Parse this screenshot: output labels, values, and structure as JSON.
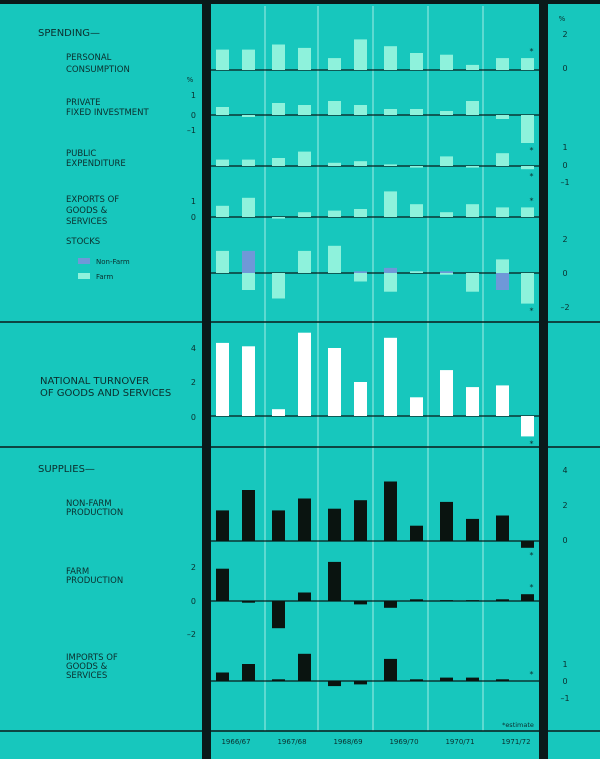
{
  "colors": {
    "background": "#17c7bd",
    "frame": "#0a1a1a",
    "spending_bar": "#8ef2dc",
    "nonfarm_bar": "#6f98d8",
    "turnover_bar": "#ffffff",
    "supplies_bar": "#0a1410"
  },
  "sections": {
    "spending": "SPENDING—",
    "supplies": "SUPPLIES—"
  },
  "chart_data": {
    "type": "bar",
    "x_labels": [
      "1966/67",
      "1967/68",
      "1968/69",
      "1969/70",
      "1970/71",
      "1971/72"
    ],
    "footnote": "*estimate",
    "estimate_marker": "*",
    "panels": [
      {
        "label": [
          "PERSONAL",
          "CONSUMPTION"
        ],
        "percent_symbol": "%",
        "ticks_right": [
          "2",
          "0"
        ],
        "series": [
          {
            "values": [
              1.2,
              1.2,
              1.5,
              1.3,
              0.7,
              1.8,
              1.4,
              1.0,
              0.9,
              0.3,
              0.7,
              0.7
            ]
          }
        ]
      },
      {
        "label": [
          "PRIVATE",
          "FIXED INVESTMENT"
        ],
        "percent_symbol": "%",
        "ticks_left": [
          "1",
          "0",
          "–1"
        ],
        "series": [
          {
            "values": [
              0.4,
              -0.1,
              0.6,
              0.5,
              0.7,
              0.5,
              0.3,
              0.3,
              0.2,
              0.7,
              -0.2,
              -1.4
            ]
          }
        ]
      },
      {
        "label": [
          "PUBLIC",
          "EXPENDITURE"
        ],
        "ticks_right": [
          "1",
          "0",
          "–1"
        ],
        "series": [
          {
            "values": [
              0.4,
              0.4,
              0.5,
              0.9,
              0.2,
              0.3,
              0.1,
              -0.1,
              0.6,
              -0.1,
              0.8,
              -0.2
            ]
          }
        ]
      },
      {
        "label": [
          "EXPORTS OF",
          "GOODS &",
          "SERVICES"
        ],
        "ticks_left": [
          "1",
          "0"
        ],
        "series": [
          {
            "values": [
              0.7,
              1.2,
              -0.1,
              0.3,
              0.4,
              0.5,
              1.6,
              0.8,
              0.3,
              0.8,
              0.6,
              0.6
            ]
          }
        ]
      },
      {
        "label": [
          "STOCKS"
        ],
        "legend": [
          "Non-Farm",
          "Farm"
        ],
        "ticks_right": [
          "2",
          "0",
          "–2"
        ],
        "series": [
          {
            "name": "Non-Farm",
            "values": [
              0,
              1.3,
              -0.3,
              0.1,
              0.1,
              0.1,
              0.3,
              0.1,
              0.1,
              0,
              -1.0,
              -0.5
            ]
          },
          {
            "name": "Farm",
            "values": [
              1.3,
              -1.0,
              -1.5,
              1.3,
              1.6,
              -0.5,
              -1.1,
              0.1,
              -0.1,
              -1.1,
              0.8,
              -1.8
            ]
          }
        ]
      },
      {
        "label": [
          "NATIONAL TURNOVER",
          "OF GOODS AND SERVICES"
        ],
        "ticks_left": [
          "4",
          "2",
          "0"
        ],
        "series": [
          {
            "values": [
              4.3,
              4.1,
              0.4,
              4.9,
              4.0,
              2.0,
              4.6,
              1.1,
              2.7,
              1.7,
              1.8,
              -1.2
            ]
          }
        ]
      },
      {
        "label": [
          "NON-FARM",
          "PRODUCTION"
        ],
        "ticks_right": [
          "4",
          "2",
          "0"
        ],
        "series": [
          {
            "values": [
              1.8,
              3.0,
              1.8,
              2.5,
              1.9,
              2.4,
              3.5,
              0.9,
              2.3,
              1.3,
              1.5,
              -0.4
            ]
          }
        ]
      },
      {
        "label": [
          "FARM",
          "PRODUCTION"
        ],
        "ticks_left": [
          "2",
          "0",
          "–2"
        ],
        "series": [
          {
            "values": [
              1.9,
              -0.1,
              -1.6,
              0.5,
              2.3,
              -0.2,
              -0.4,
              0.1,
              0.05,
              0.05,
              0.1,
              0.4
            ]
          }
        ]
      },
      {
        "label": [
          "IMPORTS OF",
          "GOODS &",
          "SERVICES"
        ],
        "ticks_right": [
          "1",
          "0",
          "–1"
        ],
        "series": [
          {
            "values": [
              0.5,
              1.0,
              0.1,
              1.6,
              -0.3,
              -0.2,
              1.3,
              0.1,
              0.2,
              0.2,
              0.1,
              0
            ]
          }
        ]
      }
    ]
  }
}
